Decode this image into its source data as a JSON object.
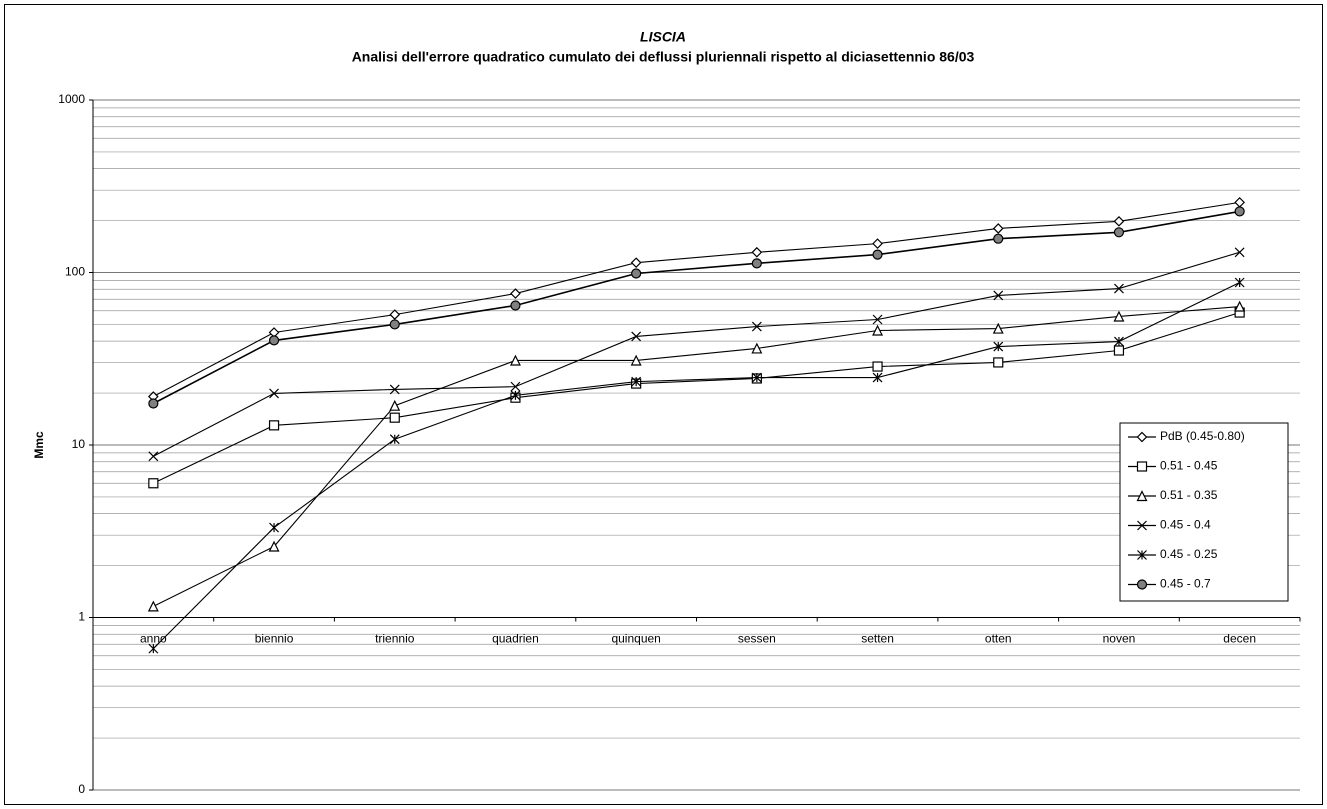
{
  "chart_data": {
    "type": "line",
    "title": "LISCIA",
    "subtitle": "Analisi dell'errore quadratico cumulato dei deflussi pluriennali rispetto al diciasettennio 86/03",
    "y_label": "Mmc",
    "log_scale": true,
    "grid": true,
    "legend_position": "right",
    "x_axis_crosses": 1,
    "categories": [
      "anno",
      "biennio",
      "triennio",
      "quadrien",
      "quinquen",
      "sessen",
      "setten",
      "otten",
      "noven",
      "decen"
    ],
    "ylim": [
      0.1,
      1000
    ],
    "yticks": [
      {
        "value": 0.1,
        "label": "0"
      },
      1,
      10,
      100,
      1000
    ],
    "series": [
      {
        "name": "PdB (0.45-0.80)",
        "color": "#000000",
        "marker": "diamond",
        "values": [
          19.1,
          44.9,
          57,
          75.5,
          114,
          131,
          147,
          180,
          198,
          255
        ]
      },
      {
        "name": "0.51 - 0.45",
        "color": "#000000",
        "marker": "square",
        "values": [
          6.0,
          13,
          14.4,
          18.8,
          22.7,
          24.3,
          28.5,
          30.1,
          35.3,
          58.6
        ]
      },
      {
        "name": "0.51 - 0.35",
        "color": "#000000",
        "marker": "triangle",
        "values": [
          1.16,
          2.58,
          16.9,
          30.9,
          30.9,
          36.3,
          46.1,
          47.3,
          55.6,
          63.5
        ]
      },
      {
        "name": "0.45 - 0.4",
        "color": "#000000",
        "marker": "x",
        "values": [
          8.6,
          19.9,
          21,
          21.8,
          42.6,
          48.6,
          53.4,
          73.6,
          80.7,
          131
        ]
      },
      {
        "name": "0.45 - 0.25",
        "color": "#000000",
        "marker": "asterisk",
        "values": [
          0.66,
          3.32,
          10.8,
          19.4,
          23.3,
          24.6,
          24.6,
          37.2,
          39.8,
          87.5
        ]
      },
      {
        "name": "0.45 - 0.7",
        "color": "#000000",
        "marker": "circle",
        "values": [
          17.4,
          40.4,
          50,
          64.4,
          98.7,
          113,
          127,
          157,
          171,
          226
        ]
      }
    ]
  }
}
